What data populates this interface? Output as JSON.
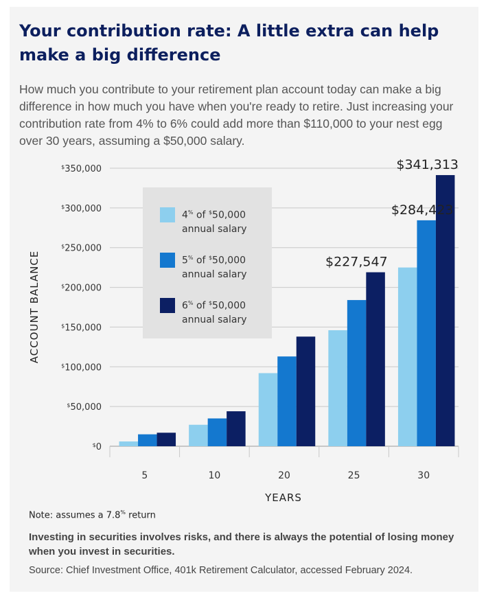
{
  "title": "Your contribution rate: A little extra can help make a big difference",
  "intro": "How much you contribute to your retirement plan account today can make a big difference in how much you have when you're ready to retire. Just increasing your contribution rate from 4% to 6% could add more than $110,000 to your nest egg over 30 years, assuming a $50,000 salary.",
  "legend": [
    {
      "pct": "4",
      "pct_unit": "%",
      "of": " of ",
      "dollar": "$",
      "amount": "50,000",
      "line2": "annual salary",
      "color": "#8dcfee"
    },
    {
      "pct": "5",
      "pct_unit": "%",
      "of": " of ",
      "dollar": "$",
      "amount": "50,000",
      "line2": "annual salary",
      "color": "#1478cf"
    },
    {
      "pct": "6",
      "pct_unit": "%",
      "of": " of ",
      "dollar": "$",
      "amount": "50,000",
      "line2": "annual salary",
      "color": "#0c1f63"
    }
  ],
  "note": {
    "prefix": "Note: assumes a 7.8",
    "unit": "%",
    "suffix": " return"
  },
  "disclaimer": "Investing in securities involves risks, and there is always the potential of losing money when you invest in securities.",
  "source": "Source: Chief Investment Office, 401k Retirement Calculator, accessed February 2024.",
  "chart_data": {
    "type": "bar",
    "xlabel": "YEARS",
    "ylabel": "ACCOUNT BALANCE",
    "ylim": [
      0,
      350000
    ],
    "yticks": [
      0,
      50000,
      100000,
      150000,
      200000,
      250000,
      300000,
      350000
    ],
    "ytick_labels": [
      "0",
      "50,000",
      "100,000",
      "150,000",
      "200,000",
      "250,000",
      "300,000",
      "350,000"
    ],
    "ytick_prefix": "$",
    "categories": [
      "5",
      "10",
      "20",
      "25",
      "30"
    ],
    "grid": true,
    "legend_position": "top-left",
    "series": [
      {
        "color": "#8dcfee",
        "values": [
          6000,
          27000,
          92000,
          146000,
          225000
        ]
      },
      {
        "color": "#1478cf",
        "values": [
          15000,
          35000,
          113000,
          184000,
          284423
        ]
      },
      {
        "color": "#0c1f63",
        "values": [
          17000,
          44000,
          138000,
          219000,
          341313
        ]
      }
    ],
    "annotations": [
      {
        "category": "25",
        "text": "$227,547"
      },
      {
        "category": "30",
        "series": 1,
        "text": "$284,423"
      },
      {
        "category": "30",
        "series": 2,
        "text": "$341,313"
      }
    ]
  }
}
